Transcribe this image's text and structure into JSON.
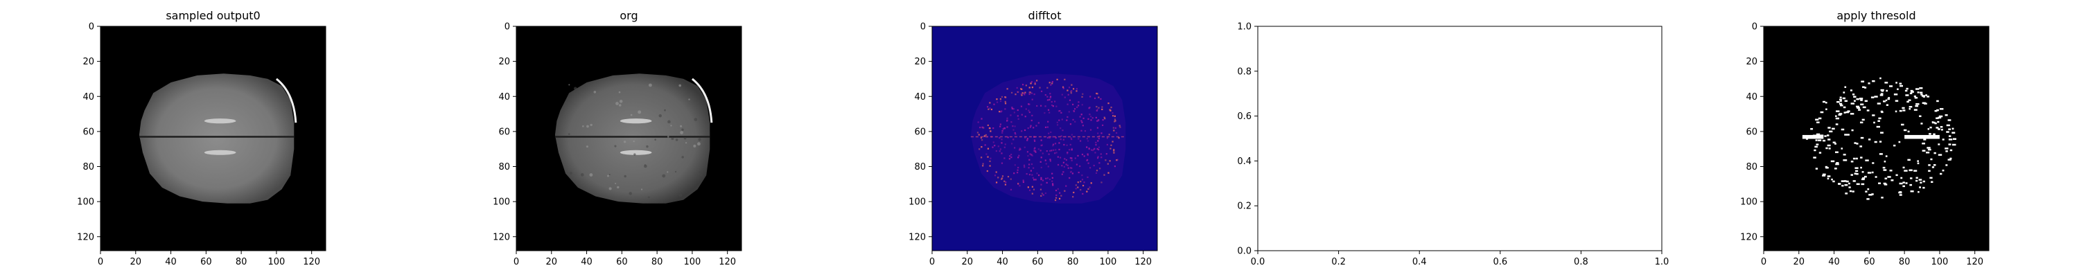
{
  "chart_data": [
    {
      "type": "heatmap",
      "title": "sampled output0",
      "image": "brain-mri-axial-slice-grayscale",
      "colormap": "gray",
      "xlim": [
        0,
        128
      ],
      "ylim": [
        128,
        0
      ],
      "x_ticks": [
        0,
        20,
        40,
        60,
        80,
        100,
        120
      ],
      "y_ticks": [
        0,
        20,
        40,
        60,
        80,
        100,
        120
      ],
      "grid": false
    },
    {
      "type": "heatmap",
      "title": "org",
      "image": "brain-mri-axial-slice-grayscale",
      "colormap": "gray",
      "xlim": [
        0,
        128
      ],
      "ylim": [
        128,
        0
      ],
      "x_ticks": [
        0,
        20,
        40,
        60,
        80,
        100,
        120
      ],
      "y_ticks": [
        0,
        20,
        40,
        60,
        80,
        100,
        120
      ],
      "grid": false
    },
    {
      "type": "heatmap",
      "title": "difftot",
      "image": "difference-map-magenta-speckles-on-dark-blue",
      "colormap": "plasma",
      "background_color": "#0d0887",
      "speckle_color": "#b12a90",
      "xlim": [
        0,
        128
      ],
      "ylim": [
        128,
        0
      ],
      "x_ticks": [
        0,
        20,
        40,
        60,
        80,
        100,
        120
      ],
      "y_ticks": [
        0,
        20,
        40,
        60,
        80,
        100,
        120
      ],
      "grid": false
    },
    {
      "type": "scatter",
      "title": "",
      "empty": true,
      "xlim": [
        0.0,
        1.0
      ],
      "ylim": [
        0.0,
        1.0
      ],
      "x_ticks": [
        "0.0",
        "0.2",
        "0.4",
        "0.6",
        "0.8",
        "1.0"
      ],
      "y_ticks": [
        "0.0",
        "0.2",
        "0.4",
        "0.6",
        "0.8",
        "1.0"
      ],
      "grid": false
    },
    {
      "type": "heatmap",
      "title": "apply thresold",
      "image": "binary-threshold-mask-white-on-black",
      "colormap": "gray",
      "xlim": [
        0,
        128
      ],
      "ylim": [
        128,
        0
      ],
      "x_ticks": [
        0,
        20,
        40,
        60,
        80,
        100,
        120
      ],
      "y_ticks": [
        0,
        20,
        40,
        60,
        80,
        100,
        120
      ],
      "grid": false
    }
  ]
}
